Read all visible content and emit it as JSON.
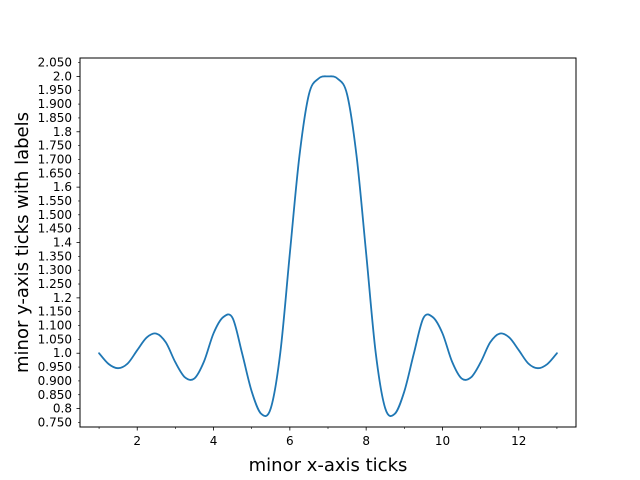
{
  "chart_data": {
    "type": "line",
    "title": "",
    "xlabel": "minor x-axis ticks",
    "ylabel": "minor y-axis ticks with labels",
    "xlim": [
      0.5,
      13.5
    ],
    "ylim": [
      0.7335,
      2.0665
    ],
    "grid": false,
    "legend": "none",
    "x_major_ticks": [
      2,
      4,
      6,
      8,
      10,
      12
    ],
    "x_major_tick_labels": [
      "2",
      "4",
      "6",
      "8",
      "10",
      "12"
    ],
    "x_minor_ticks": [
      1,
      3,
      5,
      7,
      9,
      11,
      13
    ],
    "y_major_ticks": [
      0.8,
      1.0,
      1.2,
      1.4,
      1.6,
      1.8,
      2.0
    ],
    "y_major_tick_labels": [
      "0.8",
      "1.0",
      "1.2",
      "1.4",
      "1.6",
      "1.8",
      "2.0"
    ],
    "y_minor_ticks": [
      0.75,
      0.85,
      0.9,
      0.95,
      1.05,
      1.1,
      1.15,
      1.25,
      1.3,
      1.35,
      1.45,
      1.5,
      1.55,
      1.65,
      1.7,
      1.75,
      1.85,
      1.9,
      1.95,
      2.05
    ],
    "y_minor_tick_labels": [
      "0.750",
      "0.850",
      "0.900",
      "0.950",
      "1.050",
      "1.100",
      "1.150",
      "1.250",
      "1.300",
      "1.350",
      "1.450",
      "1.500",
      "1.550",
      "1.650",
      "1.700",
      "1.750",
      "1.850",
      "1.900",
      "1.950",
      "2.050"
    ],
    "series": [
      {
        "color": "#1f77b4",
        "x": [
          1.0,
          1.25,
          1.5,
          1.75,
          2.0,
          2.25,
          2.5,
          2.75,
          3.0,
          3.25,
          3.5,
          3.75,
          4.0,
          4.25,
          4.5,
          4.75,
          5.0,
          5.25,
          5.5,
          5.75,
          6.0,
          6.25,
          6.5,
          6.75,
          7.0,
          7.25,
          7.5,
          7.75,
          8.0,
          8.25,
          8.5,
          8.75,
          9.0,
          9.25,
          9.5,
          9.75,
          10.0,
          10.25,
          10.5,
          10.75,
          11.0,
          11.25,
          11.5,
          11.75,
          12.0,
          12.25,
          12.5,
          12.75,
          13.0
        ],
        "y": [
          1.0,
          0.961,
          0.946,
          0.963,
          1.011,
          1.057,
          1.071,
          1.039,
          0.967,
          0.913,
          0.909,
          0.97,
          1.072,
          1.13,
          1.127,
          0.999,
          0.862,
          0.781,
          0.801,
          1.002,
          1.361,
          1.711,
          1.935,
          1.992,
          2.0,
          1.992,
          1.935,
          1.711,
          1.361,
          1.002,
          0.801,
          0.781,
          0.862,
          0.999,
          1.127,
          1.13,
          1.072,
          0.97,
          0.909,
          0.913,
          0.967,
          1.039,
          1.071,
          1.057,
          1.011,
          0.963,
          0.946,
          0.961,
          1.0
        ]
      }
    ]
  }
}
